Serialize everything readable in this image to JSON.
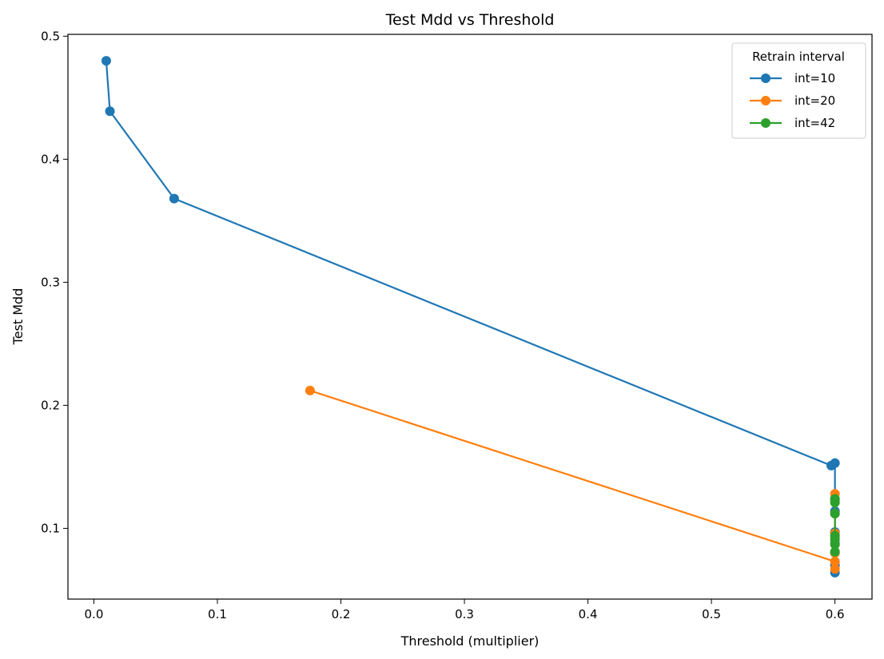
{
  "chart_data": {
    "type": "line",
    "title": "Test Mdd vs Threshold",
    "xlabel": "Threshold (multiplier)",
    "ylabel": "Test Mdd",
    "xlim": [
      -0.021,
      0.63
    ],
    "ylim": [
      0.0425,
      0.5015
    ],
    "xticks": [
      0.0,
      0.1,
      0.2,
      0.3,
      0.4,
      0.5,
      0.6
    ],
    "xtick_labels": [
      "0.0",
      "0.1",
      "0.2",
      "0.3",
      "0.4",
      "0.5",
      "0.6"
    ],
    "yticks": [
      0.1,
      0.2,
      0.3,
      0.4,
      0.5
    ],
    "ytick_labels": [
      "0.1",
      "0.2",
      "0.3",
      "0.4",
      "0.5"
    ],
    "grid": false,
    "legend": {
      "title": "Retrain interval",
      "placement": "top-right"
    },
    "series": [
      {
        "name": "int=10",
        "color": "#1f77b4",
        "x": [
          0.01,
          0.013,
          0.065,
          0.597,
          0.6,
          0.6,
          0.6,
          0.6,
          0.6,
          0.6,
          0.6,
          0.6
        ],
        "y": [
          0.48,
          0.439,
          0.368,
          0.151,
          0.153,
          0.124,
          0.114,
          0.097,
          0.088,
          0.08,
          0.07,
          0.064
        ]
      },
      {
        "name": "int=20",
        "color": "#ff7f0e",
        "x": [
          0.175,
          0.6,
          0.6,
          0.6,
          0.6,
          0.6,
          0.6,
          0.6,
          0.6,
          0.6
        ],
        "y": [
          0.212,
          0.073,
          0.067,
          0.08,
          0.087,
          0.093,
          0.096,
          0.112,
          0.122,
          0.128
        ]
      },
      {
        "name": "int=42",
        "color": "#2ca02c",
        "x": [
          0.6,
          0.6,
          0.6,
          0.6,
          0.6,
          0.6,
          0.6
        ],
        "y": [
          0.081,
          0.087,
          0.091,
          0.094,
          0.112,
          0.121,
          0.124
        ]
      }
    ]
  }
}
